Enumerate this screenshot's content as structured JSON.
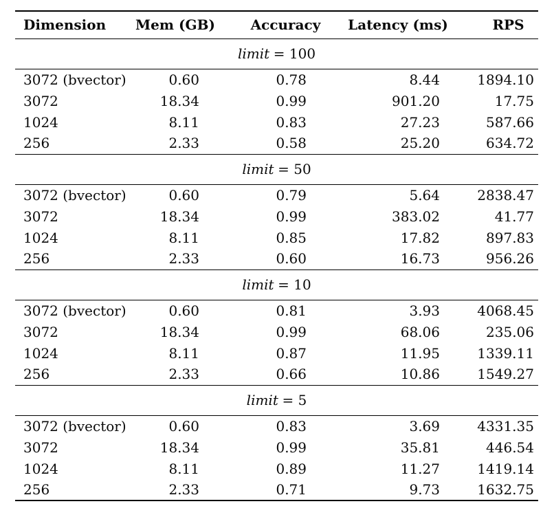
{
  "table": {
    "columns": [
      "Dimension",
      "Mem (GB)",
      "Accuracy",
      "Latency (ms)",
      "RPS"
    ],
    "text_color": "#0a0a0a",
    "rule_color": "#000000",
    "sections": [
      {
        "limit_var": "limit",
        "limit_eq": "= 100",
        "rows": [
          {
            "dimension": "3072 (bvector)",
            "mem": "0.60",
            "accuracy": "0.78",
            "latency": "8.44",
            "rps": "1894.10"
          },
          {
            "dimension": "3072",
            "mem": "18.34",
            "accuracy": "0.99",
            "latency": "901.20",
            "rps": "17.75"
          },
          {
            "dimension": "1024",
            "mem": "8.11",
            "accuracy": "0.83",
            "latency": "27.23",
            "rps": "587.66"
          },
          {
            "dimension": "256",
            "mem": "2.33",
            "accuracy": "0.58",
            "latency": "25.20",
            "rps": "634.72"
          }
        ]
      },
      {
        "limit_var": "limit",
        "limit_eq": "= 50",
        "rows": [
          {
            "dimension": "3072 (bvector)",
            "mem": "0.60",
            "accuracy": "0.79",
            "latency": "5.64",
            "rps": "2838.47"
          },
          {
            "dimension": "3072",
            "mem": "18.34",
            "accuracy": "0.99",
            "latency": "383.02",
            "rps": "41.77"
          },
          {
            "dimension": "1024",
            "mem": "8.11",
            "accuracy": "0.85",
            "latency": "17.82",
            "rps": "897.83"
          },
          {
            "dimension": "256",
            "mem": "2.33",
            "accuracy": "0.60",
            "latency": "16.73",
            "rps": "956.26"
          }
        ]
      },
      {
        "limit_var": "limit",
        "limit_eq": "= 10",
        "rows": [
          {
            "dimension": "3072 (bvector)",
            "mem": "0.60",
            "accuracy": "0.81",
            "latency": "3.93",
            "rps": "4068.45"
          },
          {
            "dimension": "3072",
            "mem": "18.34",
            "accuracy": "0.99",
            "latency": "68.06",
            "rps": "235.06"
          },
          {
            "dimension": "1024",
            "mem": "8.11",
            "accuracy": "0.87",
            "latency": "11.95",
            "rps": "1339.11"
          },
          {
            "dimension": "256",
            "mem": "2.33",
            "accuracy": "0.66",
            "latency": "10.86",
            "rps": "1549.27"
          }
        ]
      },
      {
        "limit_var": "limit",
        "limit_eq": "= 5",
        "rows": [
          {
            "dimension": "3072 (bvector)",
            "mem": "0.60",
            "accuracy": "0.83",
            "latency": "3.69",
            "rps": "4331.35"
          },
          {
            "dimension": "3072",
            "mem": "18.34",
            "accuracy": "0.99",
            "latency": "35.81",
            "rps": "446.54"
          },
          {
            "dimension": "1024",
            "mem": "8.11",
            "accuracy": "0.89",
            "latency": "11.27",
            "rps": "1419.14"
          },
          {
            "dimension": "256",
            "mem": "2.33",
            "accuracy": "0.71",
            "latency": "9.73",
            "rps": "1632.75"
          }
        ]
      }
    ]
  }
}
